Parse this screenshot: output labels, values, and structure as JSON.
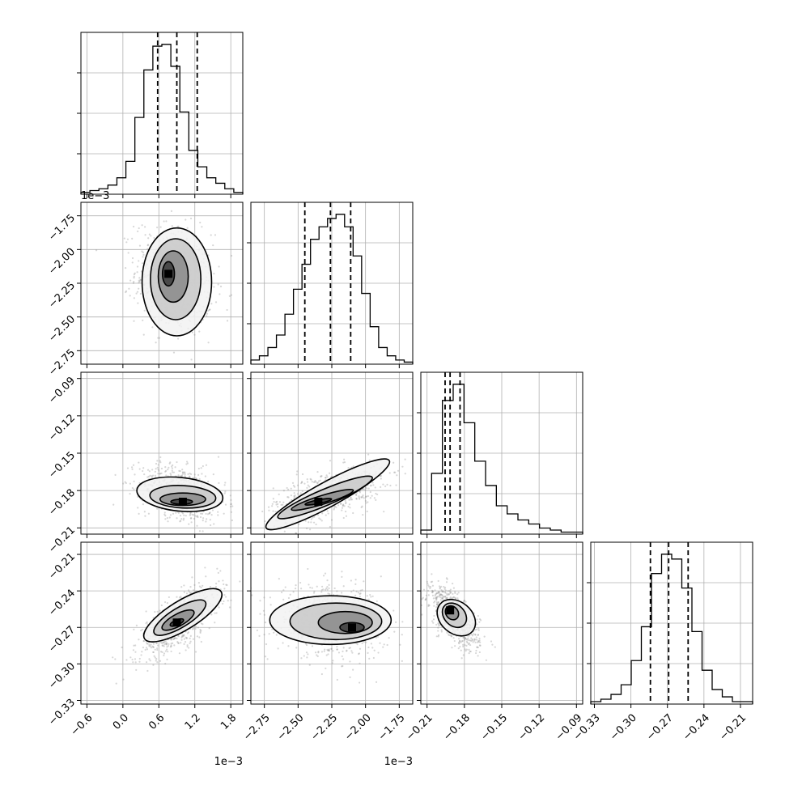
{
  "chart_data": {
    "type": "scatter",
    "kind": "corner-plot",
    "title": "",
    "grid": true,
    "colors": {
      "line": "#000000",
      "grid": "#b0b0b0",
      "points": "#8c8c8c"
    },
    "parameters": [
      {
        "range": [
          -0.0007,
          0.002
        ],
        "offset_label": "1e−3",
        "ticks": [
          -0.6,
          0.0,
          0.6,
          1.2,
          1.8
        ],
        "tick_labels": [
          "−0.6",
          "0.0",
          "0.6",
          "1.2",
          "1.8"
        ],
        "quantiles": [
          0.00058,
          0.0009,
          0.00124
        ],
        "hist_counts": [
          1,
          2,
          3,
          5,
          9,
          18,
          42,
          68,
          81,
          82,
          70,
          45,
          24,
          15,
          9,
          6,
          3,
          1
        ]
      },
      {
        "range": [
          -0.00285,
          -0.00165
        ],
        "offset_label": "1e−3",
        "ticks": [
          -2.75,
          -2.5,
          -2.25,
          -2.0,
          -1.75
        ],
        "tick_labels": [
          "−2.75",
          "−2.50",
          "−2.25",
          "−2.00",
          "−1.75"
        ],
        "quantiles": [
          -0.00245,
          -0.00226,
          -0.00211
        ],
        "hist_counts": [
          2,
          4,
          8,
          14,
          24,
          36,
          48,
          60,
          66,
          70,
          72,
          66,
          52,
          34,
          18,
          8,
          4,
          2,
          1
        ]
      },
      {
        "range": [
          -0.215,
          -0.085
        ],
        "offset_label": "",
        "ticks": [
          -0.21,
          -0.18,
          -0.15,
          -0.12,
          -0.09
        ],
        "tick_labels": [
          "−0.21",
          "−0.18",
          "−0.15",
          "−0.12",
          "−0.09"
        ],
        "quantiles": [
          -0.1955,
          -0.1915,
          -0.1835
        ],
        "hist_counts": [
          2,
          30,
          66,
          74,
          55,
          36,
          24,
          14,
          10,
          7,
          5,
          3,
          2,
          1,
          1
        ]
      },
      {
        "range": [
          -0.333,
          -0.2
        ],
        "offset_label": "",
        "ticks": [
          -0.33,
          -0.3,
          -0.27,
          -0.24,
          -0.21
        ],
        "tick_labels": [
          "−0.33",
          "−0.30",
          "−0.27",
          "−0.24",
          "−0.21"
        ],
        "quantiles": [
          -0.284,
          -0.269,
          -0.253
        ],
        "hist_counts": [
          1,
          2,
          4,
          8,
          18,
          32,
          54,
          62,
          60,
          48,
          30,
          14,
          6,
          3,
          1,
          1
        ]
      }
    ],
    "pairs": [
      {
        "row": 1,
        "col": 0,
        "cloud": {
          "cx": 0.00085,
          "cy": -0.00222,
          "sx": 0.00032,
          "sy": 0.0002,
          "rho": -0.15,
          "n": 700
        },
        "contours": [
          {
            "cx": 0.0009,
            "cy": -0.00224,
            "rx": 0.00058,
            "ry": 0.0004,
            "rot": 0.0
          },
          {
            "cx": 0.00088,
            "cy": -0.00222,
            "rx": 0.00042,
            "ry": 0.0003,
            "rot": 0.0
          },
          {
            "cx": 0.00084,
            "cy": -0.0022,
            "rx": 0.00025,
            "ry": 0.00019,
            "rot": 0.0
          },
          {
            "cx": 0.00076,
            "cy": -0.00218,
            "rx": 0.0001,
            "ry": 9e-05,
            "rot": 0.0
          }
        ],
        "peak": {
          "x": 0.00076,
          "y": -0.00218
        }
      },
      {
        "row": 2,
        "col": 0,
        "cloud": {
          "cx": 0.001,
          "cy": -0.182,
          "sx": 0.00036,
          "sy": 0.011,
          "rho": -0.35,
          "n": 700
        },
        "contours": [
          {
            "cx": 0.00095,
            "cy": -0.183,
            "rx": 0.00072,
            "ry": 0.0135,
            "rot": -0.1
          },
          {
            "cx": 0.001,
            "cy": -0.185,
            "rx": 0.00055,
            "ry": 0.009,
            "rot": -0.05
          },
          {
            "cx": 0.001,
            "cy": -0.187,
            "rx": 0.00038,
            "ry": 0.005,
            "rot": 0.0
          },
          {
            "cx": 0.00098,
            "cy": -0.189,
            "rx": 0.00018,
            "ry": 0.002,
            "rot": 0.0
          }
        ],
        "peak": {
          "x": 0.001,
          "y": -0.189
        }
      },
      {
        "row": 2,
        "col": 1,
        "cloud": {
          "cx": -0.00228,
          "cy": -0.183,
          "sx": 0.0002,
          "sy": 0.011,
          "rho": 0.55,
          "n": 700
        },
        "contours": [
          {
            "cx": -0.00228,
            "cy": -0.183,
            "rx": 0.00052,
            "ry": 0.01,
            "rot": 0.5
          },
          {
            "cx": -0.0023,
            "cy": -0.1855,
            "rx": 0.00038,
            "ry": 0.0065,
            "rot": 0.4
          },
          {
            "cx": -0.00232,
            "cy": -0.1875,
            "rx": 0.00024,
            "ry": 0.0035,
            "rot": 0.3
          },
          {
            "cx": -0.00235,
            "cy": -0.189,
            "rx": 0.0001,
            "ry": 0.0015,
            "rot": 0.2
          }
        ],
        "peak": {
          "x": -0.00235,
          "y": -0.189
        }
      },
      {
        "row": 3,
        "col": 0,
        "cloud": {
          "cx": 0.00092,
          "cy": -0.266,
          "sx": 0.00034,
          "sy": 0.015,
          "rho": 0.7,
          "n": 700
        },
        "contours": [
          {
            "cx": 0.001,
            "cy": -0.26,
            "rx": 0.00075,
            "ry": 0.012,
            "rot": 0.55
          },
          {
            "cx": 0.00095,
            "cy": -0.262,
            "rx": 0.0005,
            "ry": 0.008,
            "rot": 0.55
          },
          {
            "cx": 0.00092,
            "cy": -0.264,
            "rx": 0.0003,
            "ry": 0.005,
            "rot": 0.5
          },
          {
            "cx": 0.0009,
            "cy": -0.266,
            "rx": 0.00012,
            "ry": 0.0022,
            "rot": 0.4
          }
        ],
        "peak": {
          "x": 0.0009,
          "y": -0.266
        }
      },
      {
        "row": 3,
        "col": 1,
        "cloud": {
          "cx": -0.00225,
          "cy": -0.265,
          "sx": 0.0002,
          "sy": 0.014,
          "rho": -0.1,
          "n": 700
        },
        "contours": [
          {
            "cx": -0.00226,
            "cy": -0.264,
            "rx": 0.00045,
            "ry": 0.02,
            "rot": 0.0
          },
          {
            "cx": -0.00222,
            "cy": -0.265,
            "rx": 0.00034,
            "ry": 0.015,
            "rot": 0.0
          },
          {
            "cx": -0.00215,
            "cy": -0.266,
            "rx": 0.0002,
            "ry": 0.009,
            "rot": 0.0
          },
          {
            "cx": -0.0021,
            "cy": -0.27,
            "rx": 9e-05,
            "ry": 0.004,
            "rot": 0.0
          }
        ],
        "peak": {
          "x": -0.0021,
          "y": -0.27
        }
      },
      {
        "row": 3,
        "col": 2,
        "cloud": {
          "cx": -0.188,
          "cy": -0.262,
          "sx": 0.01,
          "sy": 0.013,
          "rho": -0.65,
          "n": 700
        },
        "contours": [
          {
            "cx": -0.1865,
            "cy": -0.262,
            "rx": 0.017,
            "ry": 0.013,
            "rot": -0.7
          },
          {
            "cx": -0.188,
            "cy": -0.26,
            "rx": 0.011,
            "ry": 0.0085,
            "rot": -0.8
          },
          {
            "cx": -0.19,
            "cy": -0.258,
            "rx": 0.006,
            "ry": 0.005,
            "rot": -0.9
          },
          {
            "cx": -0.1915,
            "cy": -0.256,
            "rx": 0.0022,
            "ry": 0.0025,
            "rot": -1.0
          }
        ],
        "peak": {
          "x": -0.1915,
          "y": -0.256
        }
      }
    ]
  }
}
